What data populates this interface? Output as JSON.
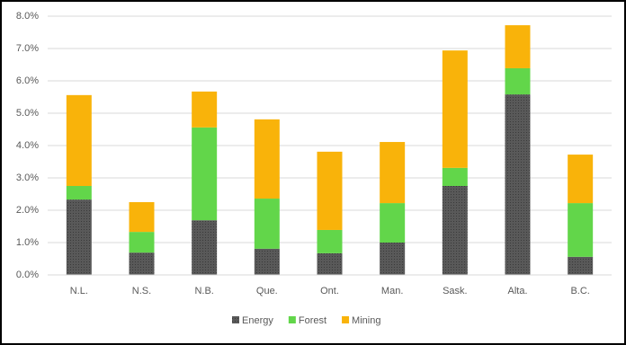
{
  "chart_data": {
    "type": "stacked-bar",
    "categories": [
      "N.L.",
      "N.S.",
      "N.B.",
      "Que.",
      "Ont.",
      "Man.",
      "Sask.",
      "Alta.",
      "B.C."
    ],
    "series": [
      {
        "name": "Energy",
        "color": "#595959",
        "values": [
          2.33,
          0.69,
          1.69,
          0.81,
          0.67,
          1.0,
          2.75,
          5.58,
          0.56
        ]
      },
      {
        "name": "Forest",
        "color": "#62d64a",
        "values": [
          0.42,
          0.64,
          2.87,
          1.55,
          0.72,
          1.22,
          0.56,
          0.81,
          1.66
        ]
      },
      {
        "name": "Mining",
        "color": "#f9b30a",
        "values": [
          2.81,
          0.92,
          1.11,
          2.45,
          2.42,
          1.89,
          3.63,
          1.33,
          1.5
        ]
      }
    ],
    "ylim": [
      0,
      8
    ],
    "yticks": [
      {
        "value": 0,
        "label": "0.0%"
      },
      {
        "value": 1,
        "label": "1.0%"
      },
      {
        "value": 2,
        "label": "2.0%"
      },
      {
        "value": 3,
        "label": "3.0%"
      },
      {
        "value": 4,
        "label": "4.0%"
      },
      {
        "value": 5,
        "label": "5.0%"
      },
      {
        "value": 6,
        "label": "6.0%"
      },
      {
        "value": 7,
        "label": "7.0%"
      },
      {
        "value": 8,
        "label": "8.0%"
      }
    ],
    "grid": true,
    "legend": "bottom"
  }
}
